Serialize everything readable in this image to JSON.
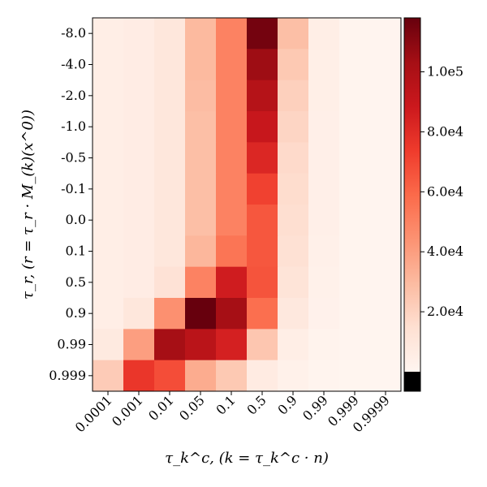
{
  "chart_data": {
    "type": "heatmap",
    "x_ticks": [
      "0.0001",
      "0.001",
      "0.01",
      "0.05",
      "0.1",
      "0.5",
      "0.9",
      "0.99",
      "0.999",
      "0.9999"
    ],
    "y_ticks": [
      "-8.0",
      "-4.0",
      "-2.0",
      "-1.0",
      "-0.5",
      "-0.1",
      "0.0",
      "0.1",
      "0.5",
      "0.9",
      "0.99",
      "0.999"
    ],
    "xlabel": "τ_k^c, (k = τ_k^c · n)",
    "ylabel": "τ_r, (r = τ_r · M_(k)(x^0))",
    "values": [
      [
        5000,
        6000,
        10000,
        30000,
        50000,
        115000,
        28000,
        5000,
        1000,
        500
      ],
      [
        5000,
        6000,
        10000,
        30000,
        50000,
        105000,
        24000,
        4500,
        1000,
        500
      ],
      [
        5000,
        6000,
        10000,
        29000,
        50000,
        97000,
        21000,
        4500,
        1000,
        500
      ],
      [
        5000,
        6000,
        10000,
        28000,
        50000,
        90000,
        19000,
        4000,
        1000,
        500
      ],
      [
        5000,
        6000,
        10000,
        28000,
        50000,
        82000,
        17000,
        4000,
        1000,
        500
      ],
      [
        5000,
        6000,
        10000,
        28000,
        50000,
        72000,
        16000,
        4000,
        1000,
        500
      ],
      [
        5000,
        6000,
        10000,
        28000,
        50000,
        65000,
        15000,
        4000,
        1000,
        500
      ],
      [
        5000,
        6000,
        10000,
        31000,
        55000,
        65000,
        14000,
        3500,
        1000,
        500
      ],
      [
        5000,
        6000,
        13000,
        50000,
        87000,
        66000,
        12000,
        3000,
        1000,
        500
      ],
      [
        5000,
        10000,
        45000,
        118000,
        103000,
        57000,
        9000,
        2500,
        1000,
        500
      ],
      [
        8000,
        40000,
        103000,
        95000,
        85000,
        25000,
        5000,
        1500,
        500,
        300
      ],
      [
        23000,
        76000,
        68000,
        35000,
        24000,
        7000,
        3000,
        1000,
        300,
        200
      ]
    ],
    "colorbar": {
      "vmin": 0,
      "vmax": 118000,
      "ticks": [
        {
          "value": 20000,
          "label": "2.0e4"
        },
        {
          "value": 40000,
          "label": "4.0e4"
        },
        {
          "value": 60000,
          "label": "6.0e4"
        },
        {
          "value": 80000,
          "label": "8.0e4"
        },
        {
          "value": 100000,
          "label": "1.0e5"
        }
      ],
      "under_color": "#000000",
      "colormap": "Reds"
    }
  }
}
